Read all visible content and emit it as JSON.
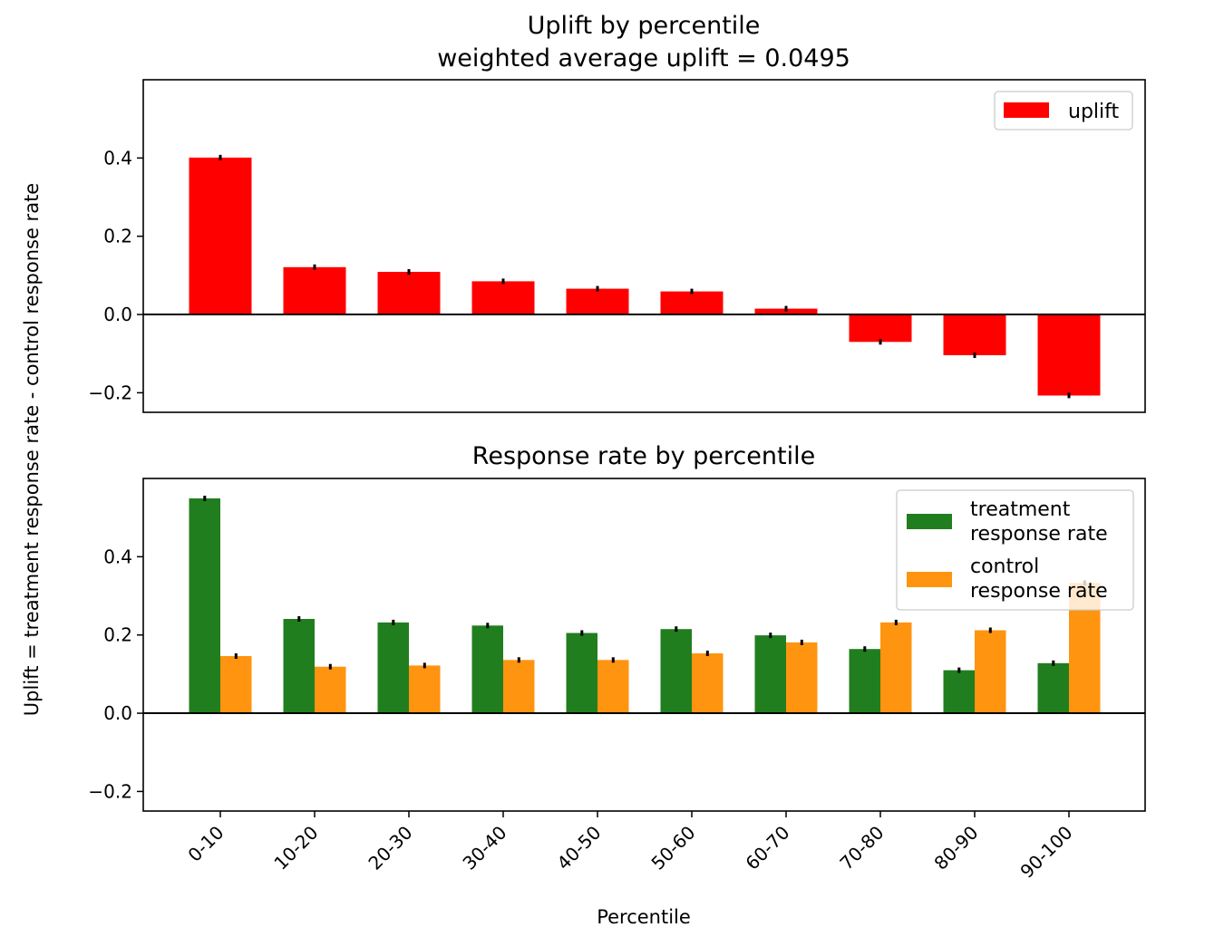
{
  "chart_data": [
    {
      "type": "bar",
      "title": "Uplift by percentile",
      "subtitle_prefix": "weighted average uplift = ",
      "subtitle_value": "0.0495",
      "categories": [
        "0-10",
        "10-20",
        "20-30",
        "30-40",
        "40-50",
        "50-60",
        "60-70",
        "70-80",
        "80-90",
        "90-100"
      ],
      "series": [
        {
          "name": "uplift",
          "color": "#ff0000",
          "values": [
            0.401,
            0.121,
            0.109,
            0.085,
            0.066,
            0.059,
            0.015,
            -0.07,
            -0.104,
            -0.207
          ]
        }
      ],
      "ylim": [
        -0.25,
        0.6
      ],
      "yticks": [
        -0.2,
        0.0,
        0.2,
        0.4
      ],
      "ytick_labels": [
        "−0.2",
        "0.0",
        "0.2",
        "0.4"
      ],
      "error_bars": true,
      "zero_line": true,
      "legend": "top-right"
    },
    {
      "type": "bar",
      "title": "Response rate by percentile",
      "categories": [
        "0-10",
        "10-20",
        "20-30",
        "30-40",
        "40-50",
        "50-60",
        "60-70",
        "70-80",
        "80-90",
        "90-100"
      ],
      "series": [
        {
          "name": "treatment\nresponse rate",
          "color": "#217e1f",
          "values": [
            0.549,
            0.241,
            0.232,
            0.224,
            0.205,
            0.215,
            0.199,
            0.164,
            0.11,
            0.128
          ]
        },
        {
          "name": "control\nresponse rate",
          "color": "#ff9410",
          "values": [
            0.146,
            0.119,
            0.122,
            0.136,
            0.136,
            0.153,
            0.181,
            0.232,
            0.212,
            0.333
          ]
        }
      ],
      "ylim": [
        -0.25,
        0.6
      ],
      "yticks": [
        -0.2,
        0.0,
        0.2,
        0.4
      ],
      "ytick_labels": [
        "−0.2",
        "0.0",
        "0.2",
        "0.4"
      ],
      "error_bars": true,
      "zero_line": true,
      "legend": "top-right"
    }
  ],
  "shared_ylabel": "Uplift = treatment response rate - control response rate",
  "shared_xlabel": "Percentile"
}
